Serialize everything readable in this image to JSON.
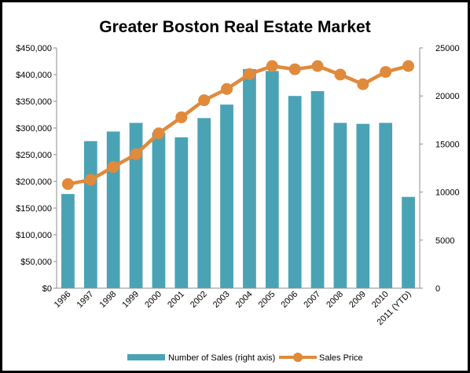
{
  "chart_data": {
    "type": "bar",
    "title": "Greater Boston Real Estate Market",
    "categories": [
      "1996",
      "1997",
      "1998",
      "1999",
      "2000",
      "2001",
      "2002",
      "2003",
      "2004",
      "2005",
      "2006",
      "2007",
      "2008",
      "2009",
      "2010",
      "2011 (YTD)"
    ],
    "series": [
      {
        "name": "Number of Sales (right axis)",
        "type": "bar",
        "axis": "right",
        "color": "#4aa3b5",
        "values": [
          9800,
          15300,
          16300,
          17200,
          16200,
          15700,
          17700,
          19100,
          22800,
          22600,
          20000,
          20500,
          17200,
          17100,
          17200,
          9500
        ]
      },
      {
        "name": "Sales Price",
        "type": "line",
        "axis": "left",
        "color": "#e08a3c",
        "values": [
          195000,
          203000,
          227000,
          251000,
          290000,
          320000,
          352000,
          373000,
          401000,
          416000,
          410000,
          416000,
          400000,
          382000,
          405000,
          416000
        ]
      }
    ],
    "left_axis": {
      "ylim": [
        0,
        450000
      ],
      "ticks": [
        "$0",
        "$50,000",
        "$100,000",
        "$150,000",
        "$200,000",
        "$250,000",
        "$300,000",
        "$350,000",
        "$400,000",
        "$450,000"
      ]
    },
    "right_axis": {
      "ylim": [
        0,
        25000
      ],
      "ticks": [
        "0",
        "5000",
        "10000",
        "15000",
        "20000",
        "25000"
      ]
    },
    "grid": false,
    "legend_position": "bottom"
  }
}
